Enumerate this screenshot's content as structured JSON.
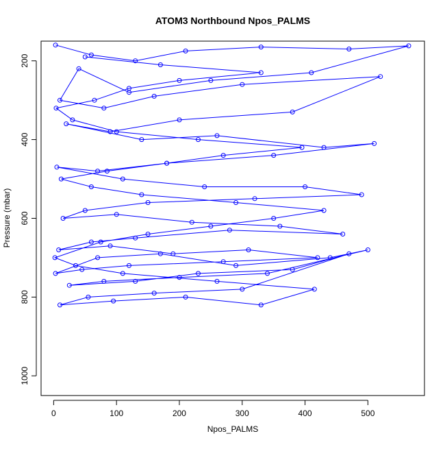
{
  "chart_data": {
    "type": "scatter",
    "title": "ATOM3 Northbound Npos_PALMS",
    "xlabel": "Npos_PALMS",
    "ylabel": "Pressure (mbar)",
    "xlim": [
      -20,
      590
    ],
    "ylim": [
      1050,
      150
    ],
    "y_reversed": true,
    "xticks": [
      0,
      100,
      200,
      300,
      400,
      500
    ],
    "yticks": [
      200,
      400,
      600,
      800,
      1000
    ],
    "line_color": "#0000ff",
    "marker": "open-circle",
    "connected": true,
    "grid": false,
    "series": [
      {
        "x": [
          3,
          60,
          130,
          210,
          330,
          470,
          565,
          410,
          250,
          120,
          40,
          10,
          80,
          160,
          300,
          520,
          380,
          200,
          90,
          20,
          140,
          260,
          430,
          510,
          350,
          180,
          70,
          5,
          110,
          240,
          400,
          490,
          320,
          150,
          50,
          15,
          100,
          220,
          360,
          460,
          280,
          130,
          60,
          8,
          90,
          190,
          310,
          420,
          270,
          120,
          45,
          3,
          70,
          170,
          290,
          440,
          500,
          340,
          200,
          80,
          25,
          130,
          230,
          380,
          470,
          300,
          160,
          55,
          10,
          95,
          210,
          330,
          415,
          260,
          110,
          35,
          2,
          75,
          150,
          250,
          350,
          430,
          290,
          140,
          60,
          12,
          85,
          180,
          270,
          395,
          230,
          100,
          30,
          4,
          65,
          120,
          200,
          330,
          170,
          50
        ],
        "y": [
          160,
          185,
          200,
          175,
          165,
          170,
          162,
          230,
          250,
          280,
          220,
          300,
          320,
          290,
          260,
          240,
          330,
          350,
          380,
          360,
          400,
          390,
          420,
          410,
          440,
          460,
          480,
          470,
          500,
          520,
          520,
          540,
          550,
          560,
          580,
          600,
          590,
          610,
          620,
          640,
          630,
          650,
          660,
          680,
          670,
          690,
          680,
          700,
          710,
          720,
          730,
          740,
          700,
          690,
          720,
          700,
          680,
          740,
          750,
          760,
          770,
          760,
          740,
          730,
          690,
          780,
          790,
          800,
          820,
          810,
          800,
          820,
          780,
          760,
          740,
          720,
          700,
          660,
          640,
          620,
          600,
          580,
          560,
          540,
          520,
          500,
          480,
          460,
          440,
          420,
          400,
          380,
          350,
          320,
          300,
          270,
          250,
          230,
          210,
          190
        ]
      }
    ]
  }
}
